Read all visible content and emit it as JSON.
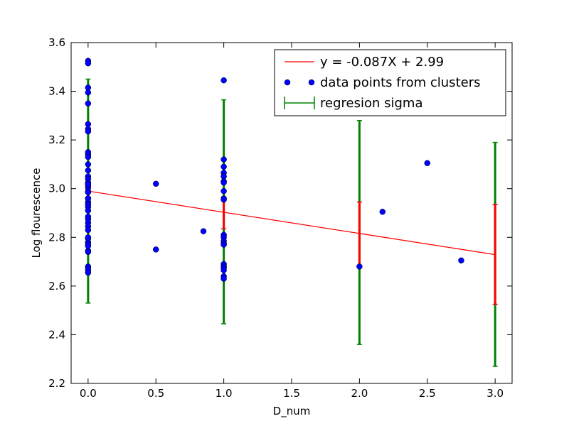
{
  "chart_data": {
    "type": "scatter",
    "xlabel": "D_num",
    "ylabel": "Log flourescence",
    "xlim": [
      -0.125,
      3.125
    ],
    "ylim": [
      2.2,
      3.6
    ],
    "x_ticks": [
      "0.0",
      "0.5",
      "1.0",
      "1.5",
      "2.0",
      "2.5",
      "3.0"
    ],
    "y_ticks": [
      "2.2",
      "2.4",
      "2.6",
      "2.8",
      "3.0",
      "3.2",
      "3.4",
      "3.6"
    ],
    "grid": false,
    "legend_position": "top-right",
    "legend": [
      {
        "label": "y = -0.087X + 2.99",
        "kind": "line",
        "color": "#ff0000"
      },
      {
        "label": "data points from clusters",
        "kind": "marker",
        "color": "#0000ff"
      },
      {
        "label": "regresion sigma",
        "kind": "errorbar",
        "color": "#008000"
      }
    ],
    "regression": {
      "slope": -0.087,
      "intercept": 2.99,
      "x_range": [
        0,
        3
      ],
      "color": "#ff0000"
    },
    "points": {
      "color": "#0000ff",
      "x": [
        0,
        0,
        0,
        0,
        0,
        0,
        0,
        0,
        0,
        0,
        0,
        0,
        0,
        0,
        0,
        0,
        0,
        0,
        0,
        0,
        0,
        0,
        0,
        0,
        0,
        0,
        0,
        0,
        0,
        0,
        0,
        0,
        0,
        0,
        0,
        0,
        0,
        0,
        0,
        0,
        0,
        0,
        0,
        0.5,
        0.5,
        0.85,
        1,
        1,
        1,
        1,
        1,
        1,
        1,
        1,
        1,
        1,
        1,
        1,
        1,
        1,
        1,
        1,
        1,
        1,
        1,
        1,
        1,
        2,
        2.17,
        2.5,
        2.75
      ],
      "y": [
        3.525,
        3.515,
        3.415,
        3.395,
        3.35,
        3.265,
        3.245,
        3.235,
        3.15,
        3.14,
        3.13,
        3.1,
        3.075,
        3.05,
        3.04,
        3.025,
        3.015,
        3.005,
        2.99,
        2.985,
        2.96,
        2.945,
        2.935,
        2.925,
        2.91,
        2.885,
        2.875,
        2.86,
        2.845,
        2.83,
        2.795,
        2.78,
        2.77,
        2.765,
        2.745,
        2.74,
        2.68,
        2.675,
        2.665,
        2.655,
        2.8,
        3.02,
        2.96,
        3.02,
        2.75,
        2.825,
        3.445,
        3.12,
        3.09,
        3.065,
        3.05,
        3.03,
        3.025,
        2.99,
        2.96,
        2.955,
        2.81,
        2.8,
        2.785,
        2.775,
        2.77,
        2.69,
        2.68,
        2.675,
        2.665,
        2.64,
        2.63,
        2.68,
        2.905,
        3.105,
        2.705
      ]
    },
    "green_sigma_bars": [
      {
        "x": 0,
        "low": 2.53,
        "high": 3.45
      },
      {
        "x": 1,
        "low": 2.445,
        "high": 3.365
      },
      {
        "x": 2,
        "low": 2.36,
        "high": 3.28
      },
      {
        "x": 3,
        "low": 2.27,
        "high": 3.19
      }
    ],
    "red_sigma_bars": [
      {
        "x": 0,
        "low": 2.93,
        "high": 3.055
      },
      {
        "x": 1,
        "low": 2.835,
        "high": 2.965
      },
      {
        "x": 2,
        "low": 2.685,
        "high": 2.945
      },
      {
        "x": 3,
        "low": 2.525,
        "high": 2.935
      }
    ],
    "colors": {
      "points": "#0000ff",
      "regression": "#ff0000",
      "sigma": "#008000",
      "error_red": "#ff0000"
    }
  }
}
